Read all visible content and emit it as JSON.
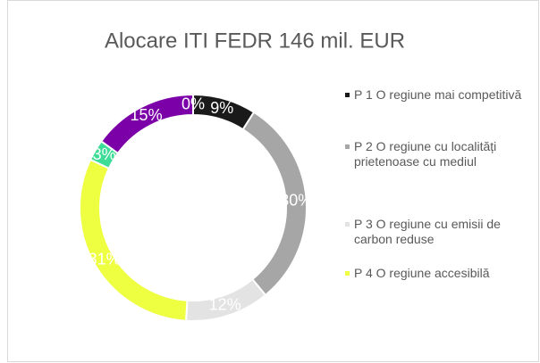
{
  "chart_data": {
    "type": "donut",
    "title": "Alocare ITI  FEDR 146 mil. EUR",
    "categories": [
      "P 1 O regiune mai competitivă",
      "P 2 O regiune cu localități prietenoase cu mediul",
      "P 3 O regiune cu emisii de carbon reduse",
      "P 4 O regiune accesibilă",
      null,
      null,
      null
    ],
    "values": [
      9,
      30,
      12,
      31,
      3,
      15,
      0
    ],
    "value_labels": [
      "9%",
      "30%",
      "12%",
      "31%",
      "3%",
      "15%",
      "0%"
    ],
    "colors": [
      "#1a1a1a",
      "#a6a6a6",
      "#e3e3e3",
      "#eeff41",
      "#3ddc97",
      "#7b00a8",
      "#4472c4"
    ]
  }
}
